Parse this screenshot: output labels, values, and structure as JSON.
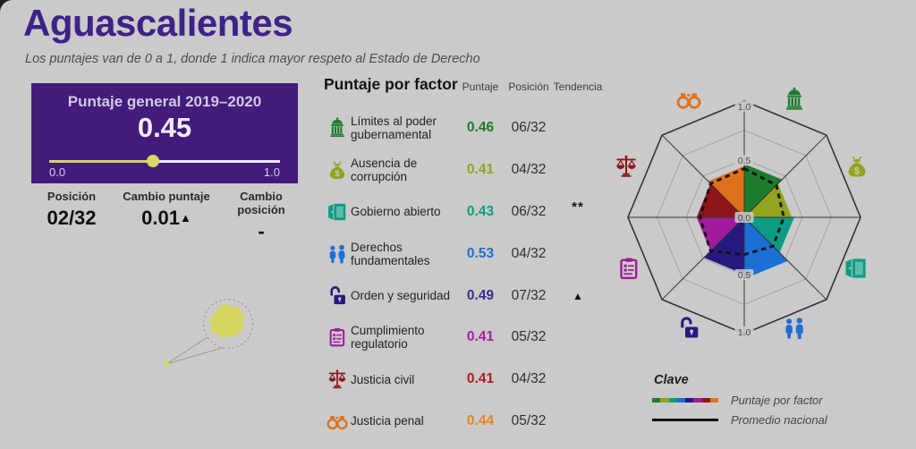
{
  "page": {
    "title": "Aguascalientes",
    "subtitle": "Los puntajes van de 0 a 1, donde 1 indica mayor respeto al Estado de Derecho"
  },
  "score_panel": {
    "title": "Puntaje general 2019–2020",
    "score": "0.45",
    "score_value": 0.45,
    "min_label": "0.0",
    "max_label": "1.0",
    "panel_color": "#431b7b",
    "slider_fill_color": "#d9d45e"
  },
  "stats": [
    {
      "label": "Posición",
      "value": "02/32",
      "arrow": ""
    },
    {
      "label": "Cambio puntaje",
      "value": "0.01",
      "arrow": "▲"
    },
    {
      "label": "Cambio posición",
      "value": "-",
      "arrow": ""
    }
  ],
  "map": {
    "highlight_color": "#d6d55e"
  },
  "factor_table": {
    "title": "Puntaje por factor",
    "columns": [
      "Puntaje",
      "Posición",
      "Tendencia"
    ]
  },
  "chart_data": {
    "type": "radar",
    "title": "Puntaje por factor",
    "scale": {
      "min": 0,
      "max": 1,
      "rings": [
        0.25,
        0.5,
        0.75,
        1.0
      ],
      "tick_labels": [
        "1.0",
        "0.5",
        "0.0",
        "0.5",
        "1.0"
      ]
    },
    "factors": [
      {
        "icon": "government-icon",
        "label": "Límites al poder gubernamental",
        "score": 0.46,
        "position": "06/32",
        "trend": "",
        "color": "#1d7c2c",
        "score_color": "#1d7c2c",
        "sector": [
          "N",
          "NE"
        ]
      },
      {
        "icon": "moneybag-icon",
        "label": "Ausencia de corrupción",
        "score": 0.41,
        "position": "04/32",
        "trend": "",
        "color": "#93a41d",
        "score_color": "#93a41d",
        "sector": [
          "NE",
          "E"
        ]
      },
      {
        "icon": "door-icon",
        "label": "Gobierno abierto",
        "score": 0.43,
        "position": "06/32",
        "trend": "**",
        "color": "#0d9c83",
        "score_color": "#0d9c83",
        "sector": [
          "E",
          "SE"
        ]
      },
      {
        "icon": "people-icon",
        "label": "Derechos fundamentales",
        "score": 0.53,
        "position": "04/32",
        "trend": "",
        "color": "#1c6fd4",
        "score_color": "#1c6fd4",
        "sector": [
          "SE",
          "S"
        ]
      },
      {
        "icon": "padlock-icon",
        "label": "Orden y seguridad",
        "score": 0.49,
        "position": "07/32",
        "trend": "▲",
        "color": "#241a7e",
        "score_color": "#3b2b90",
        "sector": [
          "S",
          "SW"
        ]
      },
      {
        "icon": "clipboard-icon",
        "label": "Cumplimiento regulatorio",
        "score": 0.41,
        "position": "05/32",
        "trend": "",
        "color": "#a01b9b",
        "score_color": "#a81aa8",
        "sector": [
          "SW",
          "W"
        ]
      },
      {
        "icon": "scales-icon",
        "label": "Justicia civil",
        "score": 0.41,
        "position": "04/32",
        "trend": "",
        "color": "#8e1616",
        "score_color": "#b11c1c",
        "sector": [
          "W",
          "NW"
        ]
      },
      {
        "icon": "handcuffs-icon",
        "label": "Justicia penal",
        "score": 0.44,
        "position": "05/32",
        "trend": "",
        "color": "#e0711b",
        "score_color": "#e8861c",
        "sector": [
          "NW",
          "N"
        ]
      }
    ],
    "promedio_nacional_por_eje": {
      "N": 0.42,
      "NE": 0.39,
      "E": 0.34,
      "SE": 0.35,
      "S": 0.32,
      "SW": 0.41,
      "W": 0.38,
      "NW": 0.41
    }
  },
  "legend": {
    "title": "Clave",
    "items": [
      {
        "label": "Puntaje por factor",
        "swatch": "multicolor"
      },
      {
        "label": "Promedio nacional",
        "swatch": "black-line"
      }
    ]
  },
  "colors": {
    "background": "#cacaca",
    "title_purple": "#3e2189",
    "national_average_line": "#101010"
  }
}
